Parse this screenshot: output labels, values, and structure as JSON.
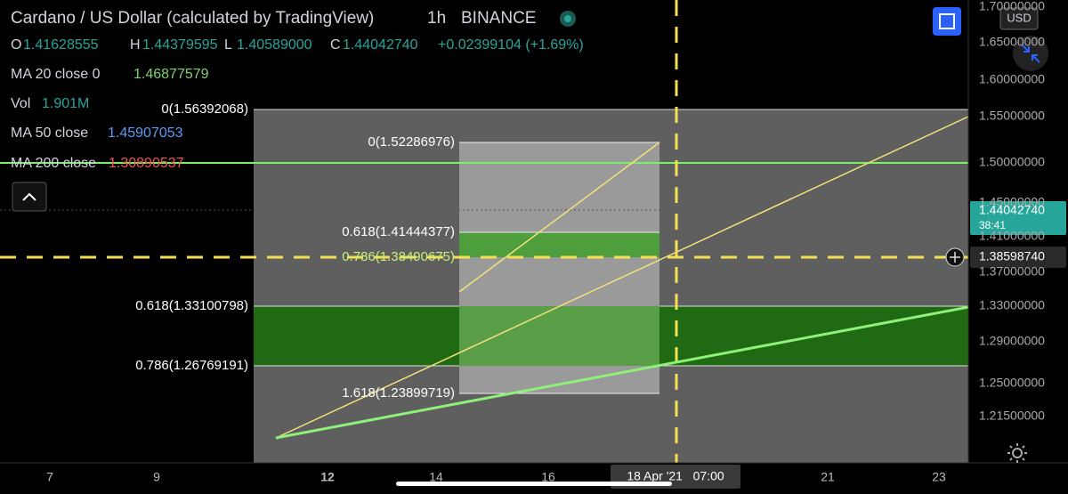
{
  "header": {
    "title": "Cardano / US Dollar (calculated by TradingView)",
    "interval": "1h",
    "exchange": "BINANCE",
    "ohlc": {
      "o_label": "O",
      "o": "1.41628555",
      "h_label": "H",
      "h": "1.44379595",
      "l_label": "L",
      "l": "1.40589000",
      "c_label": "C",
      "c": "1.44042740",
      "change": "+0.02399104 (+1.69%)"
    }
  },
  "indicators": [
    {
      "name": "MA 20 close 0",
      "value": "1.46877579"
    },
    {
      "name": "Vol",
      "value": "1.901M"
    },
    {
      "name": "MA 50 close",
      "value": "1.45907053"
    },
    {
      "name": "MA 200 close",
      "value": "1.30890537"
    }
  ],
  "price_axis": {
    "currency": "USD",
    "labels": [
      "1.70000000",
      "1.65000000",
      "1.60000000",
      "1.55000000",
      "1.50000000",
      "1.45000000",
      "1.41000000",
      "1.37000000",
      "1.33000000",
      "1.29000000",
      "1.25000000",
      "1.21500000"
    ],
    "last_price": "1.44042740",
    "countdown": "38:41",
    "crosshair_price": "1.38598740"
  },
  "time_axis": {
    "labels": [
      "7",
      "9",
      "12",
      "14",
      "16",
      "21",
      "23"
    ],
    "crosshair_time": "18 Apr '21   07:00"
  },
  "fib_large": [
    "0(1.56392068)",
    "0.618(1.33100798)",
    "0.786(1.26769191)"
  ],
  "fib_small": [
    "0(1.52286976)",
    "0.618(1.41444377)",
    "0.786(1.38490675)",
    "1.618(1.23899719)"
  ]
}
